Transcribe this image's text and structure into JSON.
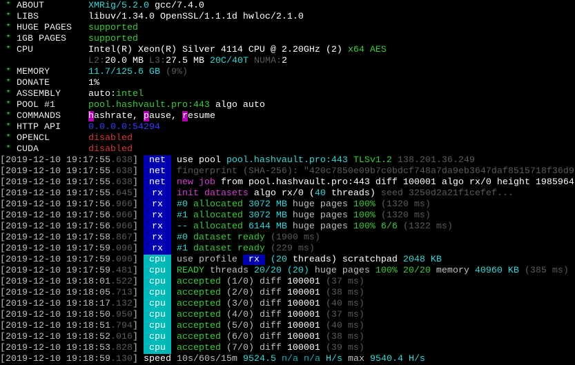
{
  "colors": {
    "background": "#000000",
    "badge_net_rx": "#0000b0",
    "badge_cpu": "#00b8b8",
    "cyan": "#34d7d7",
    "green": "#3ccc3c",
    "red": "#d03838",
    "blue": "#3a3aff",
    "magenta": "#d040d0",
    "dim": "#5a5a5a"
  },
  "header": [
    {
      "label": "ABOUT",
      "value": [
        [
          "XMRig/5.2.0",
          "c"
        ],
        [
          " gcc/7.4.0",
          "w"
        ]
      ]
    },
    {
      "label": "LIBS",
      "value": [
        [
          "libuv/1.34.0 OpenSSL/1.1.1d hwloc/2.1.0",
          "w"
        ]
      ]
    },
    {
      "label": "HUGE PAGES",
      "value": [
        [
          "supported",
          "G"
        ]
      ]
    },
    {
      "label": "1GB PAGES",
      "value": [
        [
          "supported",
          "G"
        ]
      ]
    },
    {
      "label": "CPU",
      "value": [
        [
          "Intel(R) Xeon(R) Silver 4114 CPU @ 2.20GHz (2) ",
          "w"
        ],
        [
          "x64 AES",
          "G"
        ]
      ]
    },
    {
      "label": "",
      "value": [
        [
          "L2:",
          "d"
        ],
        [
          "20.0 MB ",
          "w"
        ],
        [
          "L3:",
          "d"
        ],
        [
          "27.5 MB ",
          "w"
        ],
        [
          "20C/40T ",
          "c"
        ],
        [
          "NUMA:",
          "d"
        ],
        [
          "2",
          "w"
        ]
      ]
    },
    {
      "label": "MEMORY",
      "value": [
        [
          "11.7/125.6 GB ",
          "c"
        ],
        [
          "(9%)",
          "d"
        ]
      ]
    },
    {
      "label": "DONATE",
      "value": [
        [
          "1%",
          "w"
        ]
      ]
    },
    {
      "label": "ASSEMBLY",
      "value": [
        [
          "auto:",
          "w"
        ],
        [
          "intel",
          "G"
        ]
      ]
    },
    {
      "label": "POOL #1",
      "value": [
        [
          "pool.hashvault.pro:443 ",
          "G"
        ],
        [
          "algo auto",
          "w"
        ]
      ]
    },
    {
      "label": "COMMANDS",
      "value": [
        [
          "h",
          "mb"
        ],
        [
          "ashrate, ",
          "w"
        ],
        [
          "p",
          "mb"
        ],
        [
          "ause, ",
          "w"
        ],
        [
          "r",
          "mb"
        ],
        [
          "esume",
          "w"
        ]
      ]
    },
    {
      "label": "HTTP API",
      "value": [
        [
          "0.0.0.0:54294",
          "B"
        ]
      ]
    },
    {
      "label": "OPENCL",
      "value": [
        [
          "disabled",
          "R"
        ]
      ]
    },
    {
      "label": "CUDA",
      "value": [
        [
          "disabled",
          "R"
        ]
      ]
    }
  ],
  "log": [
    {
      "time": "2019-12-10 19:17:55",
      "ms": ".638",
      "tag": "net",
      "msg": [
        [
          "use pool ",
          "w"
        ],
        [
          "pool.hashvault.pro:443 ",
          "c"
        ],
        [
          "TLSv1.2 ",
          "G"
        ],
        [
          "138.201.36.249",
          "d"
        ]
      ]
    },
    {
      "time": "2019-12-10 19:17:55",
      "ms": ".638",
      "tag": "net",
      "msg": [
        [
          "fingerprint (SHA-256): \"420c7850e09b7c0bdcf748a7da9eb3647daf8515718f36d9",
          "d"
        ]
      ]
    },
    {
      "time": "2019-12-10 19:17:55",
      "ms": ".638",
      "tag": "net",
      "msg": [
        [
          "new job",
          "M"
        ],
        [
          " from pool.hashvault.pro:443 diff 100001 algo rx/0 height 1985964",
          "w"
        ]
      ]
    },
    {
      "time": "2019-12-10 19:17:55",
      "ms": ".645",
      "tag": "rx",
      "msg": [
        [
          "init datasets",
          "M"
        ],
        [
          " algo rx/0 (",
          "w"
        ],
        [
          "40",
          "c"
        ],
        [
          " threads) ",
          "w"
        ],
        [
          "seed 3250d2a21f1cefef...",
          "d"
        ]
      ]
    },
    {
      "time": "2019-12-10 19:17:56",
      "ms": ".966",
      "tag": "rx",
      "msg": [
        [
          "#0",
          "c"
        ],
        [
          " allocated ",
          "G"
        ],
        [
          "3072 MB",
          "c"
        ],
        [
          " huge pages ",
          "g"
        ],
        [
          "100%",
          "G"
        ],
        [
          " (1320 ms)",
          "d"
        ]
      ]
    },
    {
      "time": "2019-12-10 19:17:56",
      "ms": ".966",
      "tag": "rx",
      "msg": [
        [
          "#1",
          "c"
        ],
        [
          " allocated ",
          "G"
        ],
        [
          "3072 MB",
          "c"
        ],
        [
          " huge pages ",
          "g"
        ],
        [
          "100%",
          "G"
        ],
        [
          " (1320 ms)",
          "d"
        ]
      ]
    },
    {
      "time": "2019-12-10 19:17:56",
      "ms": ".966",
      "tag": "rx",
      "msg": [
        [
          "--",
          "c"
        ],
        [
          " allocated ",
          "G"
        ],
        [
          "6144 MB",
          "c"
        ],
        [
          " huge pages ",
          "g"
        ],
        [
          "100% 6/6",
          "G"
        ],
        [
          " (1322 ms)",
          "d"
        ]
      ]
    },
    {
      "time": "2019-12-10 19:17:58",
      "ms": ".867",
      "tag": "rx",
      "msg": [
        [
          "#0",
          "c"
        ],
        [
          " dataset ready",
          "G"
        ],
        [
          " (1900 ms)",
          "d"
        ]
      ]
    },
    {
      "time": "2019-12-10 19:17:59",
      "ms": ".096",
      "tag": "rx",
      "msg": [
        [
          "#1",
          "c"
        ],
        [
          " dataset ready",
          "G"
        ],
        [
          " (229 ms)",
          "d"
        ]
      ]
    },
    {
      "time": "2019-12-10 19:17:59",
      "ms": ".096",
      "tag": "cpu",
      "msg": [
        [
          "use profile ",
          "g"
        ],
        [
          " rx ",
          "bb"
        ],
        [
          " (20",
          "c"
        ],
        [
          " threads) scratchpad ",
          "w"
        ],
        [
          "2048 KB",
          "c"
        ]
      ]
    },
    {
      "time": "2019-12-10 19:17:59",
      "ms": ".481",
      "tag": "cpu",
      "msg": [
        [
          "READY",
          "G"
        ],
        [
          " threads ",
          "g"
        ],
        [
          "20/20 (20)",
          "c"
        ],
        [
          " huge pages ",
          "g"
        ],
        [
          "100% 20/20",
          "G"
        ],
        [
          " memory ",
          "g"
        ],
        [
          "40960 KB",
          "c"
        ],
        [
          " (385 ms)",
          "d"
        ]
      ]
    },
    {
      "time": "2019-12-10 19:18:01",
      "ms": ".522",
      "tag": "cpu",
      "msg": [
        [
          "accepted",
          "G"
        ],
        [
          " (1/0) diff ",
          "g"
        ],
        [
          "100001",
          "w"
        ],
        [
          " (37 ms)",
          "d"
        ]
      ]
    },
    {
      "time": "2019-12-10 19:18:05",
      "ms": ".713",
      "tag": "cpu",
      "msg": [
        [
          "accepted",
          "G"
        ],
        [
          " (2/0) diff ",
          "g"
        ],
        [
          "100001",
          "w"
        ],
        [
          " (38 ms)",
          "d"
        ]
      ]
    },
    {
      "time": "2019-12-10 19:18:17",
      "ms": ".132",
      "tag": "cpu",
      "msg": [
        [
          "accepted",
          "G"
        ],
        [
          " (3/0) diff ",
          "g"
        ],
        [
          "100001",
          "w"
        ],
        [
          " (40 ms)",
          "d"
        ]
      ]
    },
    {
      "time": "2019-12-10 19:18:50",
      "ms": ".950",
      "tag": "cpu",
      "msg": [
        [
          "accepted",
          "G"
        ],
        [
          " (4/0) diff ",
          "g"
        ],
        [
          "100001",
          "w"
        ],
        [
          " (37 ms)",
          "d"
        ]
      ]
    },
    {
      "time": "2019-12-10 19:18:51",
      "ms": ".794",
      "tag": "cpu",
      "msg": [
        [
          "accepted",
          "G"
        ],
        [
          " (5/0) diff ",
          "g"
        ],
        [
          "100001",
          "w"
        ],
        [
          " (40 ms)",
          "d"
        ]
      ]
    },
    {
      "time": "2019-12-10 19:18:52",
      "ms": ".016",
      "tag": "cpu",
      "msg": [
        [
          "accepted",
          "G"
        ],
        [
          " (6/0) diff ",
          "g"
        ],
        [
          "100001",
          "w"
        ],
        [
          " (38 ms)",
          "d"
        ]
      ]
    },
    {
      "time": "2019-12-10 19:18:53",
      "ms": ".828",
      "tag": "cpu",
      "msg": [
        [
          "accepted",
          "G"
        ],
        [
          " (7/0) diff ",
          "g"
        ],
        [
          "100001",
          "w"
        ],
        [
          " (39 ms)",
          "d"
        ]
      ]
    },
    {
      "time": "2019-12-10 19:18:59",
      "ms": ".130",
      "tag": "",
      "msg": [
        [
          "speed ",
          "w"
        ],
        [
          "10s/60s/15m ",
          "g"
        ],
        [
          "9524.5",
          "c"
        ],
        [
          " n/a n/a",
          "t"
        ],
        [
          " H/s",
          "c"
        ],
        [
          " max ",
          "g"
        ],
        [
          "9540.4 H/s",
          "c"
        ]
      ]
    }
  ]
}
